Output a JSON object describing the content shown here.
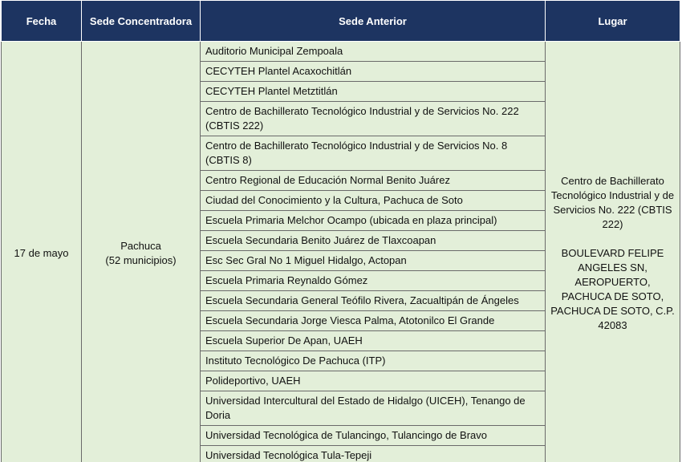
{
  "table": {
    "headers": [
      "Fecha",
      "Sede Concentradora",
      "Sede Anterior",
      "Lugar"
    ],
    "fecha": "17 de mayo",
    "sede_concentradora": [
      "Pachuca",
      "(52 municipios)"
    ],
    "sedes_anteriores": [
      "Auditorio Municipal Zempoala",
      "CECYTEH Plantel Acaxochitlán",
      "CECYTEH Plantel Metztitlán",
      "Centro de Bachillerato Tecnológico Industrial y de Servicios No. 222 (CBTIS 222)",
      "Centro de Bachillerato Tecnológico Industrial y de Servicios No. 8 (CBTIS 8)",
      "Centro Regional de Educación Normal Benito Juárez",
      "Ciudad del Conocimiento y la Cultura, Pachuca de Soto",
      "Escuela Primaria Melchor Ocampo (ubicada en plaza principal)",
      "Escuela Secundaria Benito Juárez de Tlaxcoapan",
      "Esc Sec Gral No 1 Miguel Hidalgo, Actopan",
      "Escuela Primaria Reynaldo Gómez",
      "Escuela Secundaria General Teófilo Rivera, Zacualtipán de Ángeles",
      "Escuela Secundaria Jorge Viesca Palma, Atotonilco El Grande",
      "Escuela Superior De Apan, UAEH",
      "Instituto Tecnológico De Pachuca (ITP)",
      "Polideportivo, UAEH",
      "Universidad Intercultural del Estado de Hidalgo (UICEH), Tenango de Doria",
      "Universidad Tecnológica de Tulancingo, Tulancingo de Bravo",
      "Universidad Tecnológica Tula-Tepeji"
    ],
    "lugar": [
      "Centro de Bachillerato Tecnológico Industrial y de Servicios No. 222 (CBTIS 222)",
      "BOULEVARD FELIPE ANGELES SN, AEROPUERTO, PACHUCA DE SOTO, PACHUCA DE SOTO, C.P. 42083"
    ]
  }
}
